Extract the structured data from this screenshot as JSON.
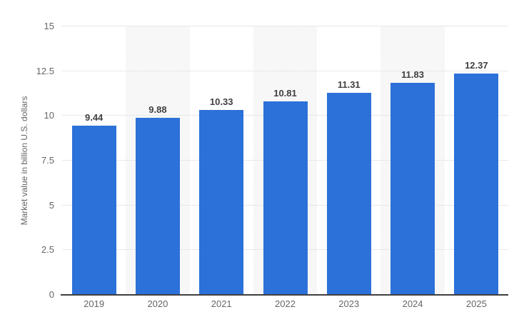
{
  "colors": {
    "bar": "#2C71D9",
    "stripe_dot": "#EFEFEF",
    "gridline": "#E8E8E8",
    "axis_line": "#3F3F3F",
    "tick_text": "#666666",
    "value_label_text": "#404040"
  },
  "chart_data": {
    "type": "bar",
    "categories": [
      "2019",
      "2020",
      "2021",
      "2022",
      "2023",
      "2024",
      "2025"
    ],
    "values": [
      9.44,
      9.88,
      10.33,
      10.81,
      11.31,
      11.83,
      12.37
    ],
    "value_labels": [
      "9.44",
      "9.88",
      "10.33",
      "10.81",
      "11.31",
      "11.83",
      "12.37"
    ],
    "title": "",
    "xlabel": "",
    "ylabel": "Market value in billion U.S. dollars",
    "ylim": [
      0,
      15
    ],
    "yticks": [
      0,
      2.5,
      5,
      7.5,
      10,
      12.5,
      15
    ],
    "ytick_labels": [
      "0",
      "2.5",
      "5",
      "7.5",
      "10",
      "12.5",
      "15"
    ],
    "grid": "horizontal",
    "legend": "none",
    "plot_background": "alternating dithered light-gray vertical stripes",
    "striped_columns": [
      "2020",
      "2022",
      "2024"
    ]
  }
}
